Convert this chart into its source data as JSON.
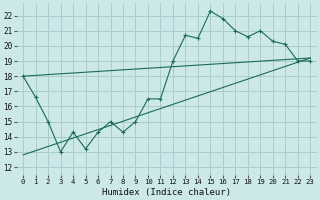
{
  "xlabel": "Humidex (Indice chaleur)",
  "bg_color": "#cce8e8",
  "grid_color": "#aacccc",
  "line_color": "#1a6b5a",
  "xlim": [
    -0.5,
    23.5
  ],
  "ylim": [
    11.5,
    22.8
  ],
  "xticks": [
    0,
    1,
    2,
    3,
    4,
    5,
    6,
    7,
    8,
    9,
    10,
    11,
    12,
    13,
    14,
    15,
    16,
    17,
    18,
    19,
    20,
    21,
    22,
    23
  ],
  "yticks": [
    12,
    13,
    14,
    15,
    16,
    17,
    18,
    19,
    20,
    21,
    22
  ],
  "line1_x": [
    0,
    1,
    2,
    3,
    4,
    5,
    6,
    7,
    8,
    9,
    10,
    11,
    12,
    13,
    14,
    15,
    16,
    17,
    18,
    19,
    20,
    21,
    22,
    23
  ],
  "line1_y": [
    18.0,
    16.6,
    15.0,
    13.0,
    14.3,
    13.2,
    14.3,
    15.0,
    14.3,
    15.0,
    16.5,
    16.5,
    19.0,
    20.7,
    20.5,
    22.3,
    21.8,
    21.0,
    20.6,
    21.0,
    20.3,
    20.1,
    19.0,
    19.0
  ],
  "line2_x": [
    0,
    23
  ],
  "line2_y": [
    18.0,
    19.2
  ],
  "line3_x": [
    0,
    23
  ],
  "line3_y": [
    12.8,
    19.2
  ]
}
